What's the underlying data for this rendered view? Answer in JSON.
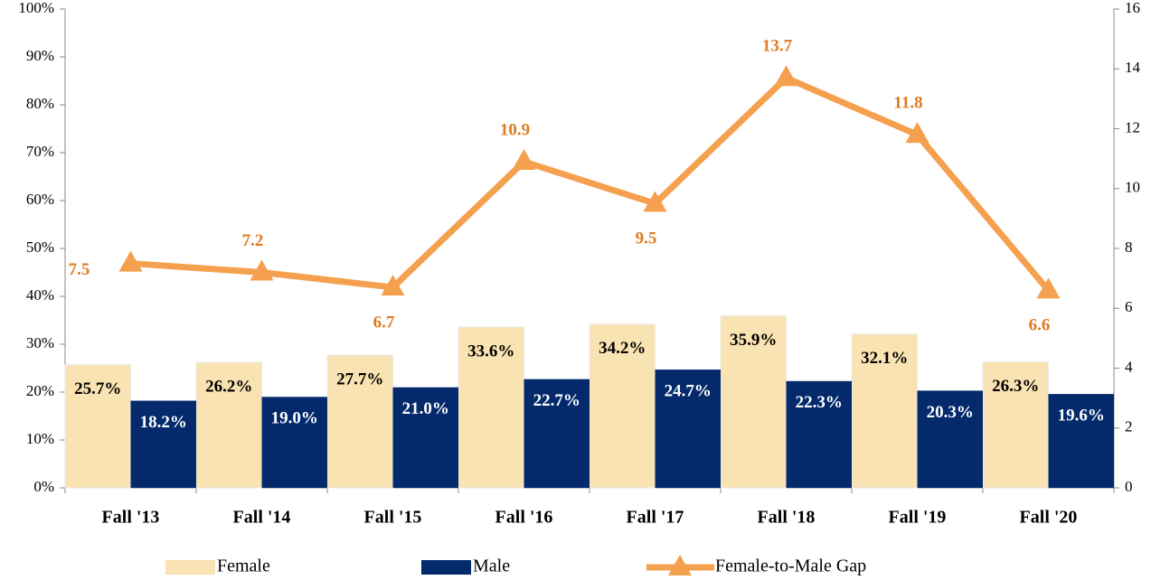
{
  "chart_data": {
    "type": "bar_line",
    "categories": [
      "Fall '13",
      "Fall '14",
      "Fall '15",
      "Fall '16",
      "Fall '17",
      "Fall '18",
      "Fall '19",
      "Fall '20"
    ],
    "series": [
      {
        "name": "Female",
        "color": "#fae3b2",
        "type": "bar",
        "values": [
          25.7,
          26.2,
          27.7,
          33.6,
          34.2,
          35.9,
          32.1,
          26.3
        ],
        "value_labels": [
          "25.7%",
          "26.2%",
          "27.7%",
          "33.6%",
          "34.2%",
          "35.9%",
          "32.1%",
          "26.3%"
        ]
      },
      {
        "name": "Male",
        "color": "#042a6c",
        "type": "bar",
        "values": [
          18.2,
          19.0,
          21.0,
          22.7,
          24.7,
          22.3,
          20.3,
          19.6
        ],
        "value_labels": [
          "18.2%",
          "19.0%",
          "21.0%",
          "22.7%",
          "24.7%",
          "22.3%",
          "20.3%",
          "19.6%"
        ]
      },
      {
        "name": "Female-to-Male Gap",
        "color": "#f4a04e",
        "type": "line",
        "axis": "y2",
        "values": [
          7.5,
          7.2,
          6.7,
          10.9,
          9.5,
          13.7,
          11.8,
          6.6
        ]
      }
    ],
    "ylim": [
      0,
      100
    ],
    "yticks": [
      {
        "value": 0,
        "label": "0%"
      },
      {
        "value": 10,
        "label": "10%"
      },
      {
        "value": 20,
        "label": "20%"
      },
      {
        "value": 30,
        "label": "30%"
      },
      {
        "value": 40,
        "label": "40%"
      },
      {
        "value": 50,
        "label": "50%"
      },
      {
        "value": 60,
        "label": "60%"
      },
      {
        "value": 70,
        "label": "70%"
      },
      {
        "value": 80,
        "label": "80%"
      },
      {
        "value": 90,
        "label": "90%"
      },
      {
        "value": 100,
        "label": "100%"
      }
    ],
    "y2lim": [
      0,
      16
    ],
    "y2ticks": [
      0,
      2,
      4,
      6,
      8,
      10,
      12,
      14,
      16
    ],
    "legend": "bottom"
  }
}
